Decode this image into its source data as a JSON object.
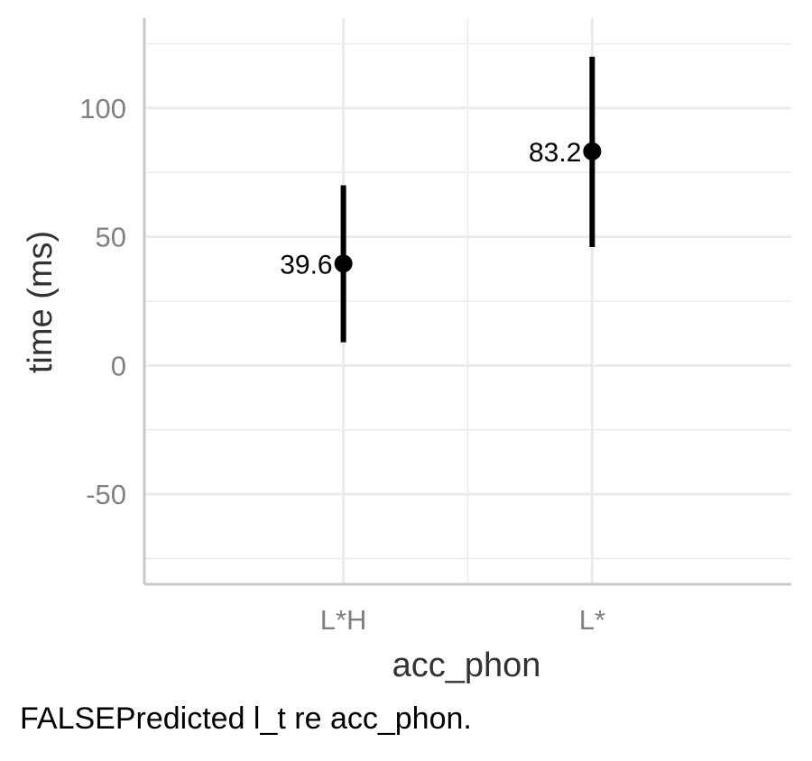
{
  "chart_data": {
    "type": "pointrange",
    "xlabel": "acc_phon",
    "ylabel": "time (ms)",
    "categories": [
      "L*H",
      "L*"
    ],
    "series": [
      {
        "values": [
          39.6,
          83.2
        ],
        "lower": [
          9,
          46
        ],
        "upper": [
          70,
          120
        ],
        "labels": [
          "39.6",
          "83.2"
        ]
      }
    ],
    "yticks": [
      -50,
      0,
      50,
      100
    ],
    "ytick_labels": [
      "-50",
      "0",
      "50",
      "100"
    ],
    "ylim": [
      -85,
      135
    ],
    "grid": true,
    "legend": "none"
  },
  "caption": "FALSEPredicted l_t re acc_phon.",
  "colors": {
    "point": "#000000",
    "grid": "#ebebeb",
    "axis_line": "#c8c8c8",
    "tick_label": "#808080",
    "axis_title": "#333333"
  }
}
